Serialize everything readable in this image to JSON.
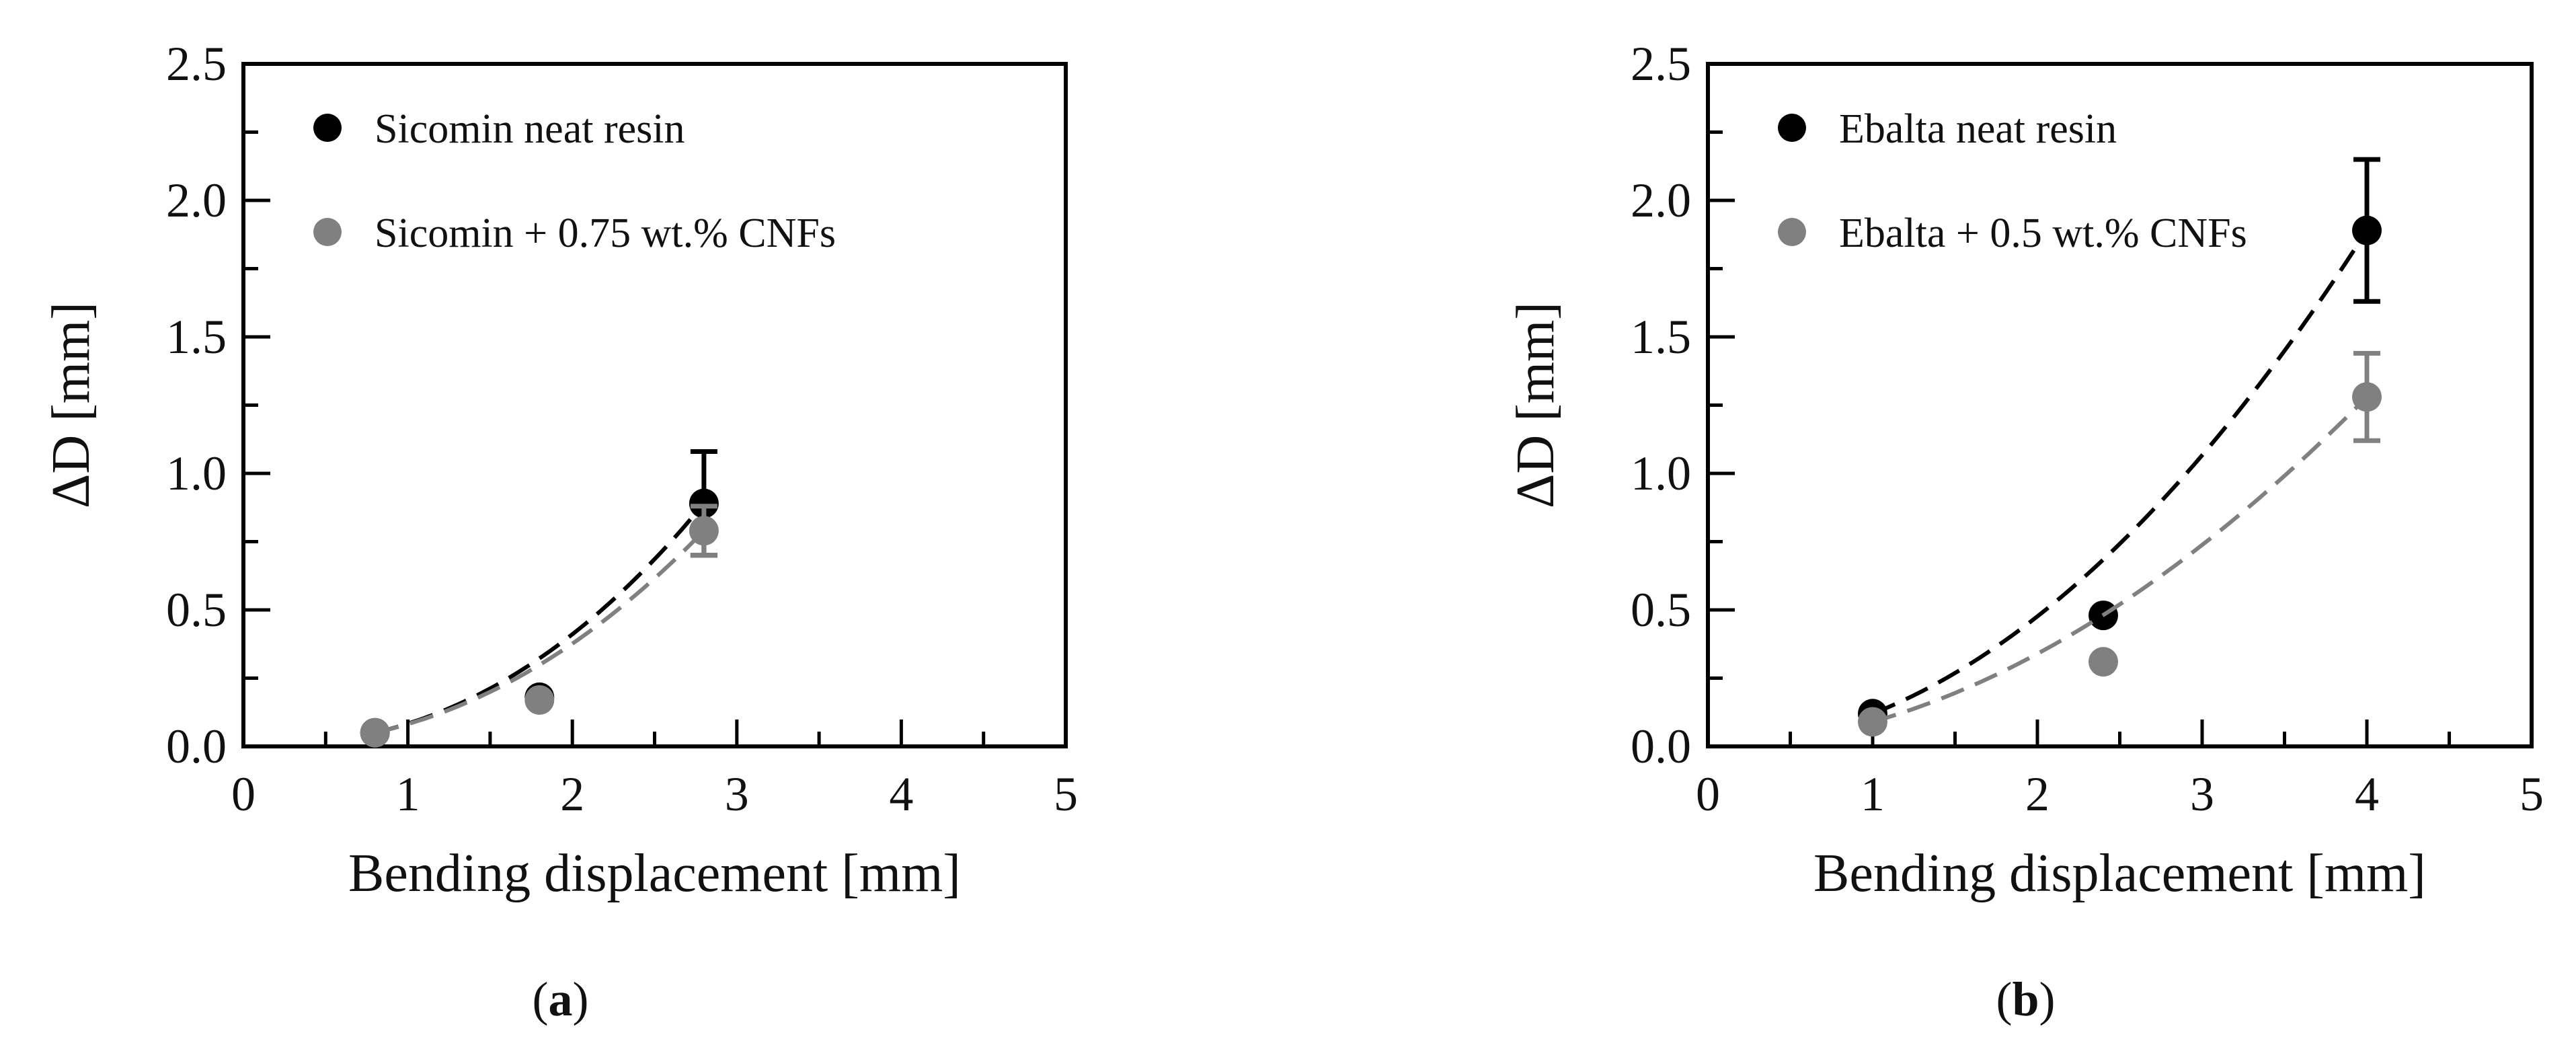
{
  "chart_data": [
    {
      "type": "scatter",
      "panel_label": "a",
      "xlabel": "Bending displacement [mm]",
      "ylabel": "ΔD [mm]",
      "xlim": [
        0,
        5
      ],
      "ylim": [
        0,
        2.5
      ],
      "x_ticks": [
        "0",
        "1",
        "2",
        "3",
        "4",
        "5"
      ],
      "y_ticks": [
        "0.0",
        "0.5",
        "1.0",
        "1.5",
        "2.0",
        "2.5"
      ],
      "grid": false,
      "legend_position": "top-left",
      "series": [
        {
          "name": "Sicomin neat resin",
          "color": "#000000",
          "x": [
            0.8,
            1.8,
            2.8
          ],
          "y": [
            0.05,
            0.18,
            0.89
          ],
          "error": [
            0,
            0,
            0.19
          ],
          "fit": "power, dashed"
        },
        {
          "name": "Sicomin + 0.75 wt.% CNFs",
          "color": "#808080",
          "x": [
            0.8,
            1.8,
            2.8
          ],
          "y": [
            0.05,
            0.17,
            0.79
          ],
          "error": [
            0,
            0,
            0.09
          ],
          "fit": "power, dashed"
        }
      ]
    },
    {
      "type": "scatter",
      "panel_label": "b",
      "xlabel": "Bending displacement [mm]",
      "ylabel": "ΔD [mm]",
      "xlim": [
        0,
        5
      ],
      "ylim": [
        0,
        2.5
      ],
      "x_ticks": [
        "0",
        "1",
        "2",
        "3",
        "4",
        "5"
      ],
      "y_ticks": [
        "0.0",
        "0.5",
        "1.0",
        "1.5",
        "2.0",
        "2.5"
      ],
      "grid": false,
      "legend_position": "top-left",
      "series": [
        {
          "name": "Ebalta neat resin",
          "color": "#000000",
          "x": [
            1.0,
            2.4,
            4.0
          ],
          "y": [
            0.12,
            0.48,
            1.89
          ],
          "error": [
            0,
            0,
            0.26
          ],
          "fit": "power, dashed"
        },
        {
          "name": "Ebalta + 0.5 wt.% CNFs",
          "color": "#808080",
          "x": [
            1.0,
            2.4,
            4.0
          ],
          "y": [
            0.09,
            0.31,
            1.28
          ],
          "error": [
            0,
            0,
            0.16
          ],
          "fit": "power, dashed"
        }
      ]
    }
  ]
}
